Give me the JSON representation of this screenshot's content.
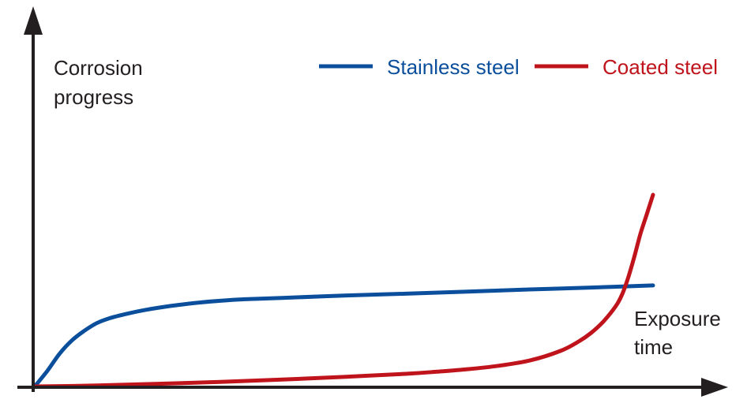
{
  "chart_data": {
    "type": "line",
    "title": "",
    "ylabel_lines": [
      "Corrosion",
      "progress"
    ],
    "xlabel_lines": [
      "Exposure",
      "time"
    ],
    "axis_ticks": "none",
    "grid": false,
    "legend_position": "top-right",
    "xlim": [
      0,
      100
    ],
    "ylim": [
      0,
      100
    ],
    "series": [
      {
        "name": "Stainless steel",
        "color": "#0b4f9c",
        "x": [
          0,
          2,
          4,
          6,
          8,
          10,
          12,
          15,
          18,
          22,
          26,
          30,
          34,
          40,
          50,
          60,
          70,
          80,
          90,
          100
        ],
        "y": [
          0,
          8,
          17,
          24,
          29,
          33,
          35.5,
          38,
          40,
          42,
          43.6,
          44.7,
          45.5,
          46.2,
          47.4,
          48.4,
          49.5,
          50.6,
          51.6,
          52.7
        ]
      },
      {
        "name": "Coated steel",
        "color": "#c0141c",
        "x": [
          0,
          10,
          20,
          30,
          40,
          50,
          60,
          65,
          70,
          75,
          80,
          85,
          88,
          90,
          92,
          94,
          95,
          96,
          97,
          98,
          99,
          100
        ],
        "y": [
          0,
          0.5,
          1.4,
          2.4,
          3.6,
          5.0,
          6.6,
          7.7,
          9.0,
          10.8,
          13.5,
          18.5,
          23.5,
          28,
          34,
          42,
          48,
          57,
          68,
          80,
          90,
          100
        ]
      }
    ]
  }
}
